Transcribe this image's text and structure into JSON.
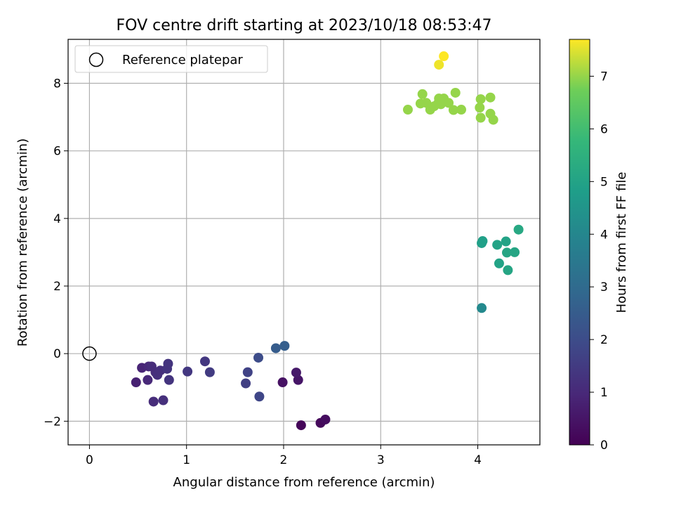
{
  "chart_data": {
    "type": "scatter",
    "title": "FOV centre drift starting at 2023/10/18 08:53:47",
    "xlabel": "Angular distance from reference (arcmin)",
    "ylabel": "Rotation from reference (arcmin)",
    "xlim": [
      -0.22,
      4.64
    ],
    "ylim": [
      -2.7,
      9.3
    ],
    "xticks": [
      0,
      1,
      2,
      3,
      4
    ],
    "yticks": [
      -2,
      0,
      2,
      4,
      6,
      8
    ],
    "grid": true,
    "legend": {
      "placement": "upper-left",
      "entries": [
        "Reference platepar"
      ]
    },
    "reference": {
      "x": 0,
      "y": 0,
      "label": "Reference platepar"
    },
    "colorbar": {
      "label": "Hours from first FF file",
      "range": [
        0,
        7.7
      ],
      "ticks": [
        0,
        1,
        2,
        3,
        4,
        5,
        6,
        7
      ],
      "colormap": "viridis"
    },
    "points": [
      {
        "x": 2.18,
        "y": -2.12,
        "h": 0.1
      },
      {
        "x": 2.38,
        "y": -2.05,
        "h": 0.2
      },
      {
        "x": 2.43,
        "y": -1.95,
        "h": 0.3
      },
      {
        "x": 1.99,
        "y": -0.85,
        "h": 0.4
      },
      {
        "x": 2.15,
        "y": -0.78,
        "h": 0.5
      },
      {
        "x": 2.13,
        "y": -0.56,
        "h": 0.6
      },
      {
        "x": 0.48,
        "y": -0.85,
        "h": 0.8
      },
      {
        "x": 0.54,
        "y": -0.42,
        "h": 0.9
      },
      {
        "x": 0.6,
        "y": -0.78,
        "h": 1.0
      },
      {
        "x": 0.61,
        "y": -0.38,
        "h": 1.0
      },
      {
        "x": 0.64,
        "y": -0.38,
        "h": 1.1
      },
      {
        "x": 0.66,
        "y": -1.42,
        "h": 1.1
      },
      {
        "x": 0.68,
        "y": -0.55,
        "h": 1.1
      },
      {
        "x": 0.7,
        "y": -0.63,
        "h": 1.2
      },
      {
        "x": 0.73,
        "y": -0.5,
        "h": 1.2
      },
      {
        "x": 0.76,
        "y": -1.38,
        "h": 1.2
      },
      {
        "x": 0.8,
        "y": -0.45,
        "h": 1.3
      },
      {
        "x": 0.81,
        "y": -0.3,
        "h": 1.3
      },
      {
        "x": 0.82,
        "y": -0.78,
        "h": 1.3
      },
      {
        "x": 1.01,
        "y": -0.53,
        "h": 1.4
      },
      {
        "x": 1.19,
        "y": -0.23,
        "h": 1.4
      },
      {
        "x": 1.24,
        "y": -0.55,
        "h": 1.5
      },
      {
        "x": 1.61,
        "y": -0.88,
        "h": 1.6
      },
      {
        "x": 1.63,
        "y": -0.55,
        "h": 1.7
      },
      {
        "x": 1.75,
        "y": -1.27,
        "h": 1.8
      },
      {
        "x": 1.74,
        "y": -0.12,
        "h": 2.0
      },
      {
        "x": 1.92,
        "y": 0.16,
        "h": 2.5
      },
      {
        "x": 2.01,
        "y": 0.23,
        "h": 2.6
      },
      {
        "x": 4.04,
        "y": 1.35,
        "h": 4.1
      },
      {
        "x": 4.04,
        "y": 3.27,
        "h": 4.9
      },
      {
        "x": 4.05,
        "y": 3.33,
        "h": 4.9
      },
      {
        "x": 4.2,
        "y": 3.22,
        "h": 5.0
      },
      {
        "x": 4.22,
        "y": 2.67,
        "h": 5.0
      },
      {
        "x": 4.29,
        "y": 3.32,
        "h": 5.0
      },
      {
        "x": 4.3,
        "y": 2.99,
        "h": 5.1
      },
      {
        "x": 4.31,
        "y": 2.47,
        "h": 5.1
      },
      {
        "x": 4.38,
        "y": 3.0,
        "h": 5.1
      },
      {
        "x": 4.42,
        "y": 3.67,
        "h": 5.2
      },
      {
        "x": 3.28,
        "y": 7.22,
        "h": 7.0
      },
      {
        "x": 3.41,
        "y": 7.4,
        "h": 7.0
      },
      {
        "x": 3.43,
        "y": 7.68,
        "h": 7.0
      },
      {
        "x": 3.47,
        "y": 7.42,
        "h": 7.0
      },
      {
        "x": 3.51,
        "y": 7.22,
        "h": 7.0
      },
      {
        "x": 3.55,
        "y": 7.32,
        "h": 7.0
      },
      {
        "x": 3.59,
        "y": 7.4,
        "h": 7.0
      },
      {
        "x": 3.6,
        "y": 7.55,
        "h": 7.0
      },
      {
        "x": 3.62,
        "y": 7.38,
        "h": 7.0
      },
      {
        "x": 3.65,
        "y": 7.55,
        "h": 7.0
      },
      {
        "x": 3.7,
        "y": 7.42,
        "h": 7.0
      },
      {
        "x": 3.75,
        "y": 7.21,
        "h": 7.0
      },
      {
        "x": 3.77,
        "y": 7.72,
        "h": 7.0
      },
      {
        "x": 3.83,
        "y": 7.22,
        "h": 7.0
      },
      {
        "x": 4.02,
        "y": 7.28,
        "h": 7.0
      },
      {
        "x": 4.03,
        "y": 7.53,
        "h": 7.0
      },
      {
        "x": 4.03,
        "y": 6.98,
        "h": 7.0
      },
      {
        "x": 4.13,
        "y": 7.58,
        "h": 7.0
      },
      {
        "x": 4.13,
        "y": 7.1,
        "h": 7.0
      },
      {
        "x": 4.16,
        "y": 6.92,
        "h": 7.0
      },
      {
        "x": 3.6,
        "y": 8.55,
        "h": 7.6
      },
      {
        "x": 3.65,
        "y": 8.8,
        "h": 7.7
      }
    ]
  }
}
